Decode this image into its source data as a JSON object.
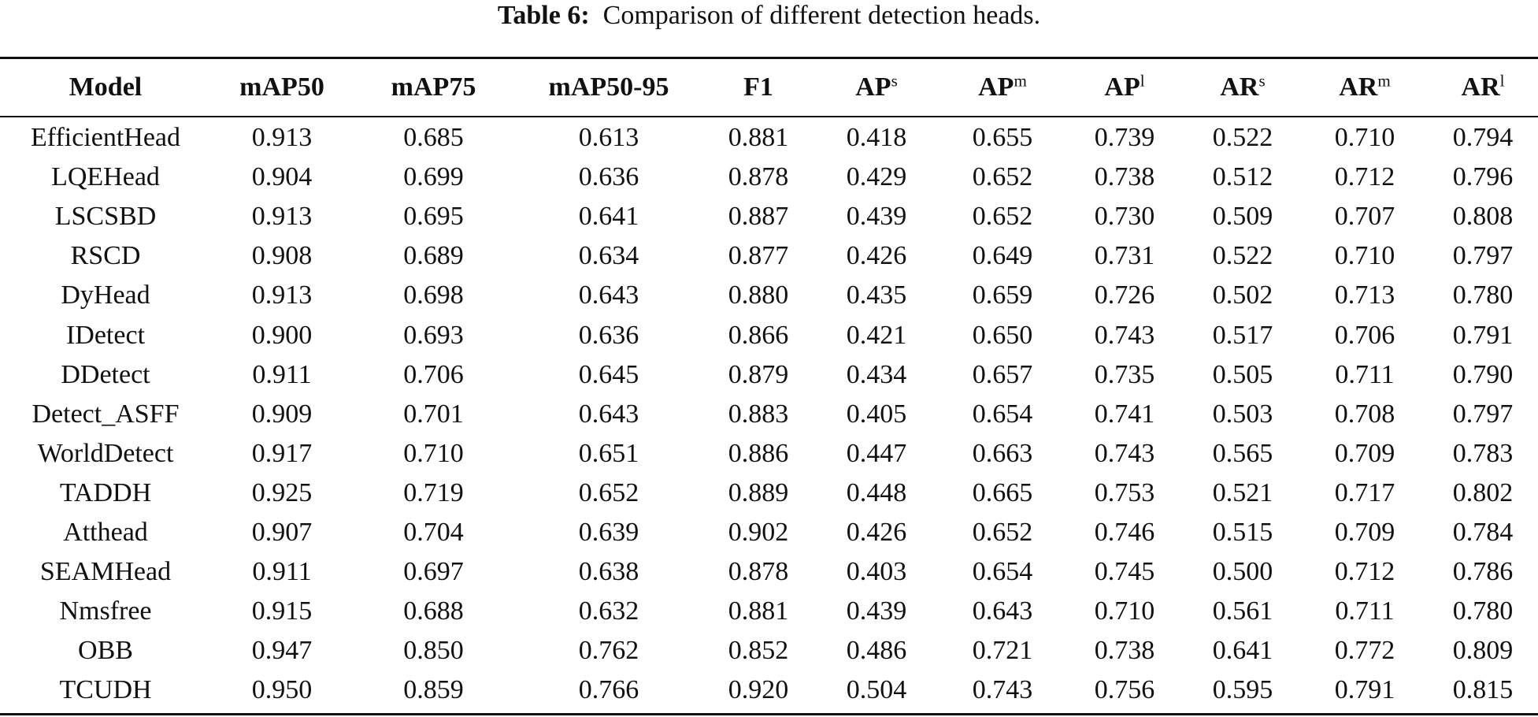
{
  "caption": {
    "label": "Table 6:",
    "text": "Comparison of different detection heads."
  },
  "header": {
    "model": "Model",
    "map50": "mAP50",
    "map75": "mAP75",
    "map50_95": "mAP50-95",
    "f1": "F1",
    "ap_s": {
      "base": "AP",
      "sup": "s"
    },
    "ap_m": {
      "base": "AP",
      "sup": "m"
    },
    "ap_l": {
      "base": "AP",
      "sup": "l"
    },
    "ar_s": {
      "base": "AR",
      "sup": "s"
    },
    "ar_m": {
      "base": "AR",
      "sup": "m"
    },
    "ar_l": {
      "base": "AR",
      "sup": "l"
    }
  },
  "rows": [
    [
      "EfficientHead",
      "0.913",
      "0.685",
      "0.613",
      "0.881",
      "0.418",
      "0.655",
      "0.739",
      "0.522",
      "0.710",
      "0.794"
    ],
    [
      "LQEHead",
      "0.904",
      "0.699",
      "0.636",
      "0.878",
      "0.429",
      "0.652",
      "0.738",
      "0.512",
      "0.712",
      "0.796"
    ],
    [
      "LSCSBD",
      "0.913",
      "0.695",
      "0.641",
      "0.887",
      "0.439",
      "0.652",
      "0.730",
      "0.509",
      "0.707",
      "0.808"
    ],
    [
      "RSCD",
      "0.908",
      "0.689",
      "0.634",
      "0.877",
      "0.426",
      "0.649",
      "0.731",
      "0.522",
      "0.710",
      "0.797"
    ],
    [
      "DyHead",
      "0.913",
      "0.698",
      "0.643",
      "0.880",
      "0.435",
      "0.659",
      "0.726",
      "0.502",
      "0.713",
      "0.780"
    ],
    [
      "IDetect",
      "0.900",
      "0.693",
      "0.636",
      "0.866",
      "0.421",
      "0.650",
      "0.743",
      "0.517",
      "0.706",
      "0.791"
    ],
    [
      "DDetect",
      "0.911",
      "0.706",
      "0.645",
      "0.879",
      "0.434",
      "0.657",
      "0.735",
      "0.505",
      "0.711",
      "0.790"
    ],
    [
      "Detect_ASFF",
      "0.909",
      "0.701",
      "0.643",
      "0.883",
      "0.405",
      "0.654",
      "0.741",
      "0.503",
      "0.708",
      "0.797"
    ],
    [
      "WorldDetect",
      "0.917",
      "0.710",
      "0.651",
      "0.886",
      "0.447",
      "0.663",
      "0.743",
      "0.565",
      "0.709",
      "0.783"
    ],
    [
      "TADDH",
      "0.925",
      "0.719",
      "0.652",
      "0.889",
      "0.448",
      "0.665",
      "0.753",
      "0.521",
      "0.717",
      "0.802"
    ],
    [
      "Atthead",
      "0.907",
      "0.704",
      "0.639",
      "0.902",
      "0.426",
      "0.652",
      "0.746",
      "0.515",
      "0.709",
      "0.784"
    ],
    [
      "SEAMHead",
      "0.911",
      "0.697",
      "0.638",
      "0.878",
      "0.403",
      "0.654",
      "0.745",
      "0.500",
      "0.712",
      "0.786"
    ],
    [
      "Nmsfree",
      "0.915",
      "0.688",
      "0.632",
      "0.881",
      "0.439",
      "0.643",
      "0.710",
      "0.561",
      "0.711",
      "0.780"
    ],
    [
      "OBB",
      "0.947",
      "0.850",
      "0.762",
      "0.852",
      "0.486",
      "0.721",
      "0.738",
      "0.641",
      "0.772",
      "0.809"
    ],
    [
      "TCUDH",
      "0.950",
      "0.859",
      "0.766",
      "0.920",
      "0.504",
      "0.743",
      "0.756",
      "0.595",
      "0.791",
      "0.815"
    ]
  ]
}
